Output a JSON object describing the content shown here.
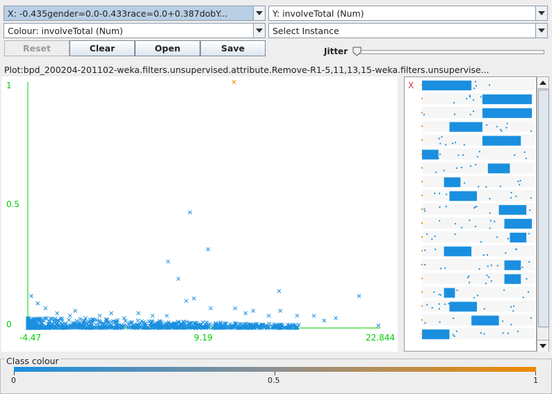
{
  "x_selector": {
    "label": "X: -0.435gender=0.0-0.433race=0.0+0.387dobY..."
  },
  "y_selector": {
    "label": "Y: involveTotal (Num)"
  },
  "colour_selector": {
    "label": "Colour: involveTotal (Num)"
  },
  "instance_selector": {
    "label": "Select Instance"
  },
  "buttons": {
    "reset": "Reset",
    "clear": "Clear",
    "open": "Open",
    "save": "Save"
  },
  "jitter": {
    "label": "Jitter",
    "value": 0
  },
  "plot_title": "Plot:bpd_200204-201102-weka.filters.unsupervised.attribute.Remove-R1-5,11,13,15-weka.filters.unsupervise...",
  "chart_data": {
    "type": "scatter",
    "xlabel": "",
    "ylabel": "",
    "x_ticks": [
      "-4.47",
      "9.19",
      "22.844"
    ],
    "y_ticks": [
      "1",
      "0.5",
      "0"
    ],
    "xlim": [
      -4.47,
      22.844
    ],
    "ylim": [
      0,
      1
    ],
    "series": [
      {
        "color": "#1a8fe0",
        "points": [
          [
            8.1,
            0.47
          ],
          [
            9.5,
            0.32
          ],
          [
            6.4,
            0.27
          ],
          [
            7.2,
            0.2
          ],
          [
            15.0,
            0.15
          ],
          [
            -4.2,
            0.13
          ],
          [
            -3.7,
            0.1
          ],
          [
            -3.1,
            0.08
          ],
          [
            -2.2,
            0.06
          ],
          [
            -0.8,
            0.07
          ],
          [
            2.0,
            0.06
          ],
          [
            4.1,
            0.06
          ],
          [
            7.8,
            0.11
          ],
          [
            8.4,
            0.12
          ],
          [
            9.7,
            0.08
          ],
          [
            11.6,
            0.08
          ],
          [
            13.0,
            0.07
          ],
          [
            15.1,
            0.07
          ],
          [
            17.7,
            0.05
          ],
          [
            19.4,
            0.04
          ],
          [
            21.2,
            0.13
          ],
          [
            22.7,
            0.01
          ],
          [
            -1.2,
            0.05
          ],
          [
            1.1,
            0.05
          ],
          [
            5.2,
            0.05
          ],
          [
            6.3,
            0.05
          ],
          [
            3.0,
            0.04
          ],
          [
            0.0,
            0.04
          ],
          [
            12.4,
            0.06
          ],
          [
            14.2,
            0.05
          ],
          [
            16.4,
            0.05
          ],
          [
            18.5,
            0.03
          ]
        ]
      },
      {
        "color": "#ee8a00",
        "points": [
          [
            11.5,
            1.0
          ]
        ]
      }
    ]
  },
  "attribute_panel": {
    "marker": "X"
  },
  "class_colour": {
    "title": "Class colour",
    "ticks": [
      "0",
      "0.5",
      "1"
    ],
    "gradient": [
      "#1a8fe0",
      "#ee8a00"
    ]
  }
}
